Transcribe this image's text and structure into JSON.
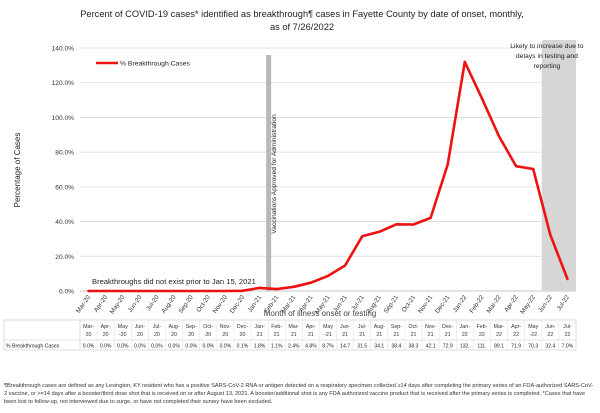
{
  "chart_data": {
    "type": "line",
    "title": "Percent of COVID-19 cases* identified as breakthrough¶ cases in Fayette County by date of onset, monthly,",
    "subtitle": "as of 7/26/2022",
    "ylabel": "Percentage of Cases",
    "xlabel": "Month of illness onset or testing",
    "ylim": [
      0,
      140
    ],
    "yticks": [
      "0.0%",
      "20.0%",
      "40.0%",
      "60.0%",
      "80.0%",
      "100.0%",
      "120.0%",
      "140.0%"
    ],
    "categories": [
      "Mar-20",
      "Apr-20",
      "May-20",
      "Jun-20",
      "Jul-20",
      "Aug-20",
      "Sep-20",
      "Oct-20",
      "Nov-20",
      "Dec-20",
      "Jan-21",
      "Feb-21",
      "Mar-21",
      "Apr-21",
      "May-21",
      "Jun-21",
      "Jul-21",
      "Aug-21",
      "Sep-21",
      "Oct-21",
      "Nov-21",
      "Dec-21",
      "Jan-22",
      "Feb-22",
      "Mar-22",
      "Apr-22",
      "May-22",
      "Jun-22",
      "Jul-22"
    ],
    "table_headers": [
      [
        "Mar-",
        "20"
      ],
      [
        "Apr-",
        "20"
      ],
      [
        "May",
        "-20"
      ],
      [
        "Jun-",
        "20"
      ],
      [
        "Jul-",
        "20"
      ],
      [
        "Aug-",
        "20"
      ],
      [
        "Sep-",
        "20"
      ],
      [
        "Oct-",
        "20"
      ],
      [
        "Nov-",
        "20"
      ],
      [
        "Dec-",
        "20"
      ],
      [
        "Jan-",
        "21"
      ],
      [
        "Feb-",
        "21"
      ],
      [
        "Mar-",
        "21"
      ],
      [
        "Apr-",
        "21"
      ],
      [
        "May",
        "-21"
      ],
      [
        "Jun-",
        "21"
      ],
      [
        "Jul-",
        "21"
      ],
      [
        "Aug-",
        "21"
      ],
      [
        "Sep-",
        "21"
      ],
      [
        "Oct-",
        "21"
      ],
      [
        "Nov-",
        "21"
      ],
      [
        "Dec-",
        "21"
      ],
      [
        "Jan-",
        "22"
      ],
      [
        "Feb-",
        "22"
      ],
      [
        "Mar-",
        "22"
      ],
      [
        "Apr-",
        "22"
      ],
      [
        "May",
        "-22"
      ],
      [
        "Jun-",
        "22"
      ],
      [
        "Jul-",
        "22"
      ]
    ],
    "table_values": [
      "0.0%",
      "0.0%",
      "0.0%",
      "0.0%",
      "0.0%",
      "0.0%",
      "0.0%",
      "0.0%",
      "0.0%",
      "0.1%",
      "1.8%",
      "1.1%",
      "2.4%",
      "4.8%",
      "8.7%",
      "14.7",
      "31.5",
      "34.1",
      "38.4",
      "38.3",
      "42.1",
      "72.9",
      "132.",
      "111.",
      "89.1",
      "71.9",
      "70.3",
      "32.4",
      "7.0%"
    ],
    "series": [
      {
        "name": "% Breakthrough Cases",
        "color": "#ee1111",
        "values": [
          0.0,
          0.0,
          0.0,
          0.0,
          0.0,
          0.0,
          0.0,
          0.0,
          0.0,
          0.1,
          1.8,
          1.1,
          2.4,
          4.8,
          8.7,
          14.7,
          31.5,
          34.1,
          38.4,
          38.3,
          42.1,
          72.9,
          132.0,
          111.0,
          89.1,
          71.9,
          70.3,
          32.4,
          7.0
        ]
      }
    ],
    "annotations": {
      "vaccination_line": "Vaccinations Approved for Administration",
      "no_breakthrough_note": "Breakthroughs did not exist prior to Jan 15, 2021",
      "shaded_note_lines": [
        "Likely to increase due to",
        "delays in testing and",
        "reporting"
      ]
    },
    "table_row_label": "% Breakthrough Cases",
    "legend_position": "top-left",
    "grid": "horizontal"
  },
  "footnote": "¶Breakthrough cases are defined as any Lexington, KY resident who has a positive SARS-CoV-2 RNA or antigen detected on a respiratory specimen collected ≥14 days after completing the primary series of an FDA-authorized SARS-CoV-2 vaccine, or >=14 days after a booster/third dose shot that is received on or after August 13, 2021. A booster/additional shot is any FDA authorized vaccine product that is received after the primary series is completed. *Cases that have been lost to follow-up, not interviewed due to surge, or have not completed their survey have been excluded."
}
